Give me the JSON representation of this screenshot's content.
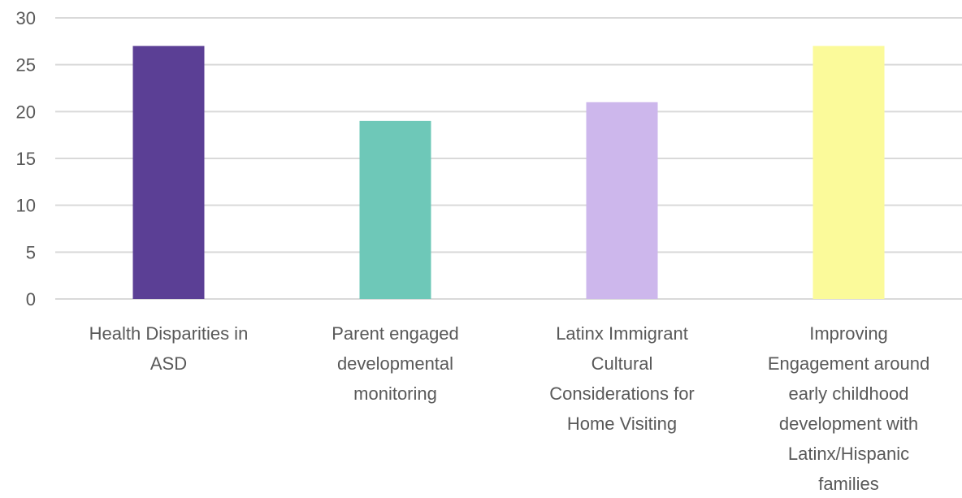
{
  "chart_data": {
    "type": "bar",
    "title": "",
    "xlabel": "",
    "ylabel": "",
    "ylim": [
      0,
      30
    ],
    "yticks": [
      0,
      5,
      10,
      15,
      20,
      25,
      30
    ],
    "grid": true,
    "legend": "none",
    "categories": [
      [
        "Health Disparities in",
        "ASD"
      ],
      [
        "Parent engaged",
        "developmental",
        "monitoring"
      ],
      [
        "Latinx Immigrant",
        "Cultural",
        "Considerations for",
        "Home Visiting"
      ],
      [
        "Improving",
        "Engagement around",
        "early childhood",
        "development with",
        "Latinx/Hispanic",
        "families"
      ]
    ],
    "values": [
      27,
      19,
      21,
      27
    ],
    "colors": [
      "#5b3f95",
      "#6ec8b8",
      "#cdb7ec",
      "#fbfa9a"
    ]
  }
}
